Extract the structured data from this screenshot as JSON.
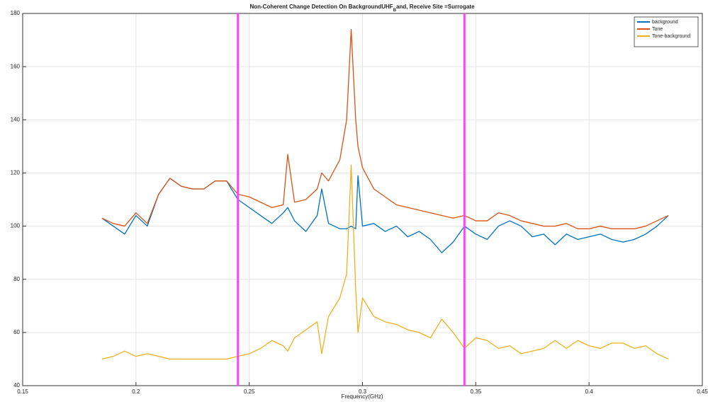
{
  "chart_data": {
    "type": "line",
    "title_parts": [
      "Non-Coherent Change Detection On BackgroundUHF",
      "B",
      "and, Receive Site =Surrogate"
    ],
    "x_label": "Frequency(GHz)",
    "x": [
      0.185,
      0.19,
      0.195,
      0.2,
      0.205,
      0.21,
      0.215,
      0.22,
      0.225,
      0.23,
      0.235,
      0.24,
      0.245,
      0.25,
      0.255,
      0.26,
      0.265,
      0.267,
      0.27,
      0.275,
      0.28,
      0.282,
      0.285,
      0.29,
      0.293,
      0.295,
      0.297,
      0.298,
      0.3,
      0.305,
      0.31,
      0.315,
      0.32,
      0.325,
      0.33,
      0.335,
      0.34,
      0.345,
      0.35,
      0.355,
      0.36,
      0.365,
      0.37,
      0.375,
      0.38,
      0.385,
      0.39,
      0.395,
      0.4,
      0.405,
      0.41,
      0.415,
      0.42,
      0.425,
      0.43,
      0.435
    ],
    "series": [
      {
        "name": "background",
        "color": "#0072bd",
        "values": [
          103,
          100,
          97,
          104,
          100,
          112,
          118,
          115,
          114,
          114,
          117,
          117,
          110,
          107,
          104,
          101,
          105,
          107,
          102,
          98,
          104,
          114,
          101,
          99,
          99,
          100,
          99,
          119,
          100,
          101,
          98,
          100,
          96,
          98,
          95,
          90,
          94,
          100,
          97,
          95,
          100,
          102,
          100,
          96,
          97,
          93,
          97,
          95,
          96,
          97,
          95,
          94,
          95,
          97,
          100,
          104
        ]
      },
      {
        "name": "Tone",
        "color": "#d95319",
        "values": [
          103,
          101,
          100,
          105,
          101,
          112,
          118,
          115,
          114,
          114,
          117,
          117,
          112,
          111,
          109,
          107,
          108,
          127,
          109,
          110,
          114,
          120,
          117,
          125,
          140,
          174,
          140,
          130,
          122,
          114,
          111,
          108,
          107,
          106,
          105,
          104,
          103,
          104,
          102,
          102,
          105,
          104,
          102,
          101,
          100,
          100,
          101,
          99,
          99,
          100,
          99,
          99,
          99,
          100,
          102,
          104
        ]
      },
      {
        "name": "Tone-background",
        "color": "#edb120",
        "values": [
          50,
          51,
          53,
          51,
          52,
          51,
          50,
          50,
          50,
          50,
          50,
          50,
          51,
          52,
          54,
          57,
          55,
          53,
          58,
          61,
          64,
          52,
          66,
          73,
          82,
          123,
          76,
          60,
          73,
          66,
          64,
          63,
          61,
          60,
          58,
          65,
          60,
          54,
          58,
          57,
          54,
          55,
          52,
          53,
          54,
          57,
          54,
          57,
          55,
          54,
          56,
          56,
          54,
          55,
          52,
          50
        ]
      }
    ],
    "markers": [
      0.245,
      0.345
    ],
    "marker_color": "#ff44ff",
    "xlim": [
      0.15,
      0.45
    ],
    "xticks": [
      0.15,
      0.2,
      0.25,
      0.3,
      0.35,
      0.4,
      0.45
    ],
    "ylim": [
      40,
      180
    ],
    "yticks": [
      40,
      60,
      80,
      100,
      120,
      140,
      160,
      180
    ],
    "grid": true,
    "legend": "northeast"
  }
}
